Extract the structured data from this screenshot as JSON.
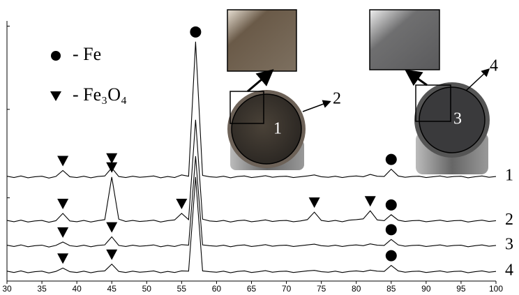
{
  "chart_data": {
    "type": "line",
    "legend": [
      {
        "label": "- Fe",
        "marker": "circle"
      },
      {
        "label": "- Fe₃O₄",
        "marker": "triangle"
      }
    ],
    "x": [
      30,
      31,
      32,
      33,
      34,
      35,
      36,
      37,
      38,
      39,
      40,
      41,
      42,
      43,
      44,
      45,
      46,
      47,
      48,
      49,
      50,
      51,
      52,
      53,
      54,
      55,
      56,
      57,
      58,
      59,
      60,
      61,
      62,
      63,
      64,
      65,
      66,
      67,
      68,
      69,
      70,
      71,
      72,
      73,
      74,
      75,
      76,
      77,
      78,
      79,
      80,
      81,
      82,
      83,
      84,
      85,
      86,
      87,
      88,
      89,
      90,
      91,
      92,
      93,
      94,
      95,
      96,
      97,
      98,
      99,
      100
    ],
    "xlim": [
      30,
      100
    ],
    "xticks": [
      30,
      35,
      40,
      45,
      50,
      55,
      60,
      65,
      70,
      75,
      80,
      85,
      90,
      95,
      100
    ],
    "ylim": [
      0,
      100
    ],
    "yticks": [
      32,
      66,
      98
    ],
    "series": [
      {
        "name": "1",
        "color": "#000000",
        "markers": [
          {
            "x": 38,
            "shape": "triangle"
          },
          {
            "x": 45,
            "shape": "triangle"
          },
          {
            "x": 57,
            "shape": "circle"
          },
          {
            "x": 85,
            "shape": "circle"
          }
        ],
        "values": [
          40.3,
          39.8,
          40.4,
          39.7,
          40.1,
          40.3,
          39.6,
          40.2,
          42.5,
          40.1,
          39.8,
          40.3,
          39.7,
          40.2,
          40.4,
          43.5,
          40.2,
          39.8,
          40.3,
          39.9,
          40.1,
          40.4,
          39.7,
          40.2,
          39.8,
          40.8,
          40.3,
          92,
          40.6,
          40.1,
          39.9,
          40.3,
          39.7,
          40.2,
          40.4,
          39.8,
          40.1,
          40.5,
          39.9,
          40.2,
          40.3,
          39.8,
          40.1,
          40.4,
          40.8,
          40.1,
          39.9,
          40.3,
          39.8,
          40.2,
          40.4,
          40.1,
          41,
          40.3,
          40.2,
          43,
          40.4,
          39.9,
          40.2,
          40.3,
          39.8,
          40.1,
          40.4,
          39.9,
          40.2,
          40.3,
          39.7,
          40.1,
          40.4,
          39.9,
          40.2
        ]
      },
      {
        "name": "2",
        "color": "#000000",
        "markers": [
          {
            "x": 38,
            "shape": "triangle"
          },
          {
            "x": 45,
            "shape": "triangle"
          },
          {
            "x": 55,
            "shape": "triangle"
          },
          {
            "x": 74,
            "shape": "triangle"
          },
          {
            "x": 82,
            "shape": "triangle"
          },
          {
            "x": 85,
            "shape": "circle"
          }
        ],
        "values": [
          23.3,
          22.8,
          23.4,
          22.7,
          23.1,
          23.3,
          22.6,
          23.2,
          26,
          23.1,
          22.8,
          23.3,
          22.7,
          23.2,
          23.6,
          40,
          23.8,
          22.9,
          23.3,
          22.9,
          23.1,
          23.4,
          22.7,
          23.2,
          23.5,
          26,
          23.6,
          62,
          23.8,
          23.1,
          22.9,
          23.3,
          22.7,
          23.2,
          23.4,
          22.8,
          23.1,
          23.5,
          22.9,
          23.2,
          23.3,
          22.8,
          23.1,
          23.6,
          26.5,
          23.3,
          22.9,
          23.3,
          22.8,
          23.4,
          23.6,
          23.9,
          27,
          23.5,
          23.2,
          25.5,
          23.4,
          22.9,
          23.2,
          23.3,
          22.8,
          23.1,
          23.4,
          22.9,
          23.2,
          23.3,
          22.7,
          23.1,
          23.4,
          22.9,
          23.2
        ]
      },
      {
        "name": "3",
        "color": "#000000",
        "markers": [
          {
            "x": 38,
            "shape": "triangle"
          },
          {
            "x": 45,
            "shape": "triangle"
          },
          {
            "x": 85,
            "shape": "circle"
          }
        ],
        "values": [
          13.8,
          13.3,
          13.9,
          13.2,
          13.6,
          13.8,
          13.1,
          13.7,
          15,
          13.6,
          13.3,
          13.8,
          13.2,
          13.7,
          13.9,
          17,
          13.7,
          13.3,
          13.8,
          13.4,
          13.6,
          13.9,
          13.2,
          13.7,
          13.3,
          14,
          13.8,
          48,
          13.9,
          13.6,
          13.4,
          13.8,
          13.2,
          13.7,
          13.9,
          13.3,
          13.6,
          14,
          13.4,
          13.7,
          13.8,
          13.3,
          13.6,
          13.9,
          14.2,
          13.6,
          13.4,
          13.8,
          13.3,
          13.7,
          13.9,
          13.6,
          14.3,
          13.8,
          13.7,
          16,
          13.9,
          13.4,
          13.7,
          13.8,
          13.3,
          13.6,
          13.9,
          13.4,
          13.7,
          13.8,
          13.2,
          13.6,
          13.9,
          13.4,
          13.7
        ]
      },
      {
        "name": "4",
        "color": "#000000",
        "markers": [
          {
            "x": 38,
            "shape": "triangle"
          },
          {
            "x": 45,
            "shape": "triangle"
          },
          {
            "x": 85,
            "shape": "circle"
          }
        ],
        "values": [
          3.8,
          3.3,
          3.9,
          3.2,
          3.6,
          3.8,
          3.1,
          3.7,
          5,
          3.6,
          3.3,
          3.8,
          3.2,
          3.7,
          3.9,
          6.5,
          3.7,
          3.3,
          3.8,
          3.4,
          3.6,
          3.9,
          3.2,
          3.7,
          3.3,
          3.9,
          3.8,
          40,
          3.9,
          3.6,
          3.4,
          3.8,
          3.2,
          3.7,
          3.9,
          3.3,
          3.6,
          4,
          3.4,
          3.7,
          3.8,
          3.3,
          3.6,
          3.9,
          4.1,
          3.6,
          3.4,
          3.8,
          3.3,
          3.7,
          3.9,
          3.6,
          4.2,
          3.8,
          3.7,
          6,
          3.9,
          3.4,
          3.7,
          3.8,
          3.3,
          3.6,
          3.9,
          3.4,
          3.7,
          3.8,
          3.2,
          3.6,
          3.9,
          3.4,
          3.7
        ]
      }
    ],
    "insets": [
      {
        "label": "1",
        "callout": "2"
      },
      {
        "label": "3",
        "callout": "4"
      }
    ]
  }
}
